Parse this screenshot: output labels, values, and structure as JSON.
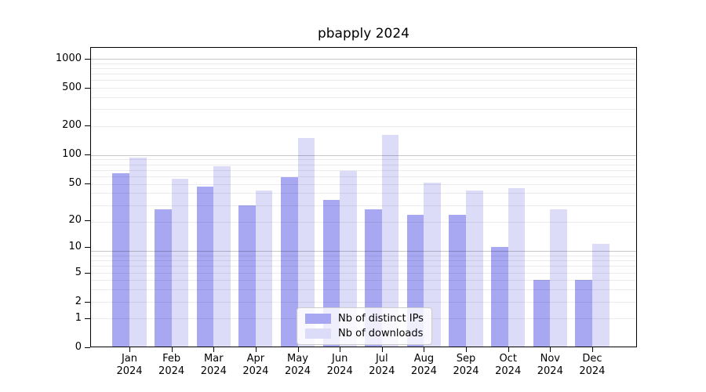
{
  "ui": {
    "title": "pbapply 2024"
  },
  "chart_data": {
    "type": "bar",
    "title": "pbapply 2024",
    "categories": [
      "Jan",
      "Feb",
      "Mar",
      "Apr",
      "May",
      "Jun",
      "Jul",
      "Aug",
      "Sep",
      "Oct",
      "Nov",
      "Dec"
    ],
    "category_year_label": "2024",
    "series": [
      {
        "name": "Nb of distinct IPs",
        "color": "#a8a8f2",
        "values": [
          63,
          26,
          46,
          29,
          58,
          33,
          26,
          23,
          23,
          10,
          4,
          4
        ]
      },
      {
        "name": "Nb of downloads",
        "color": "#dcdcf9",
        "values": [
          92,
          56,
          75,
          42,
          148,
          67,
          160,
          50,
          42,
          44,
          26,
          11
        ]
      }
    ],
    "y_ticks": [
      0,
      1,
      2,
      5,
      10,
      20,
      50,
      100,
      200,
      500,
      1000
    ],
    "y_scale": "log1p",
    "ylim": [
      0,
      1320
    ],
    "xlabel": "",
    "ylabel": "",
    "grid": true,
    "legend_position": "lower center",
    "frame": "boxed",
    "colors": {
      "bar_dark": "#a8a8f2",
      "bar_light": "#dcdcf9",
      "grid_major": "rgba(0,0,0,0.22)",
      "grid_minor": "rgba(0,0,0,0.08)",
      "spine": "#000000"
    }
  }
}
